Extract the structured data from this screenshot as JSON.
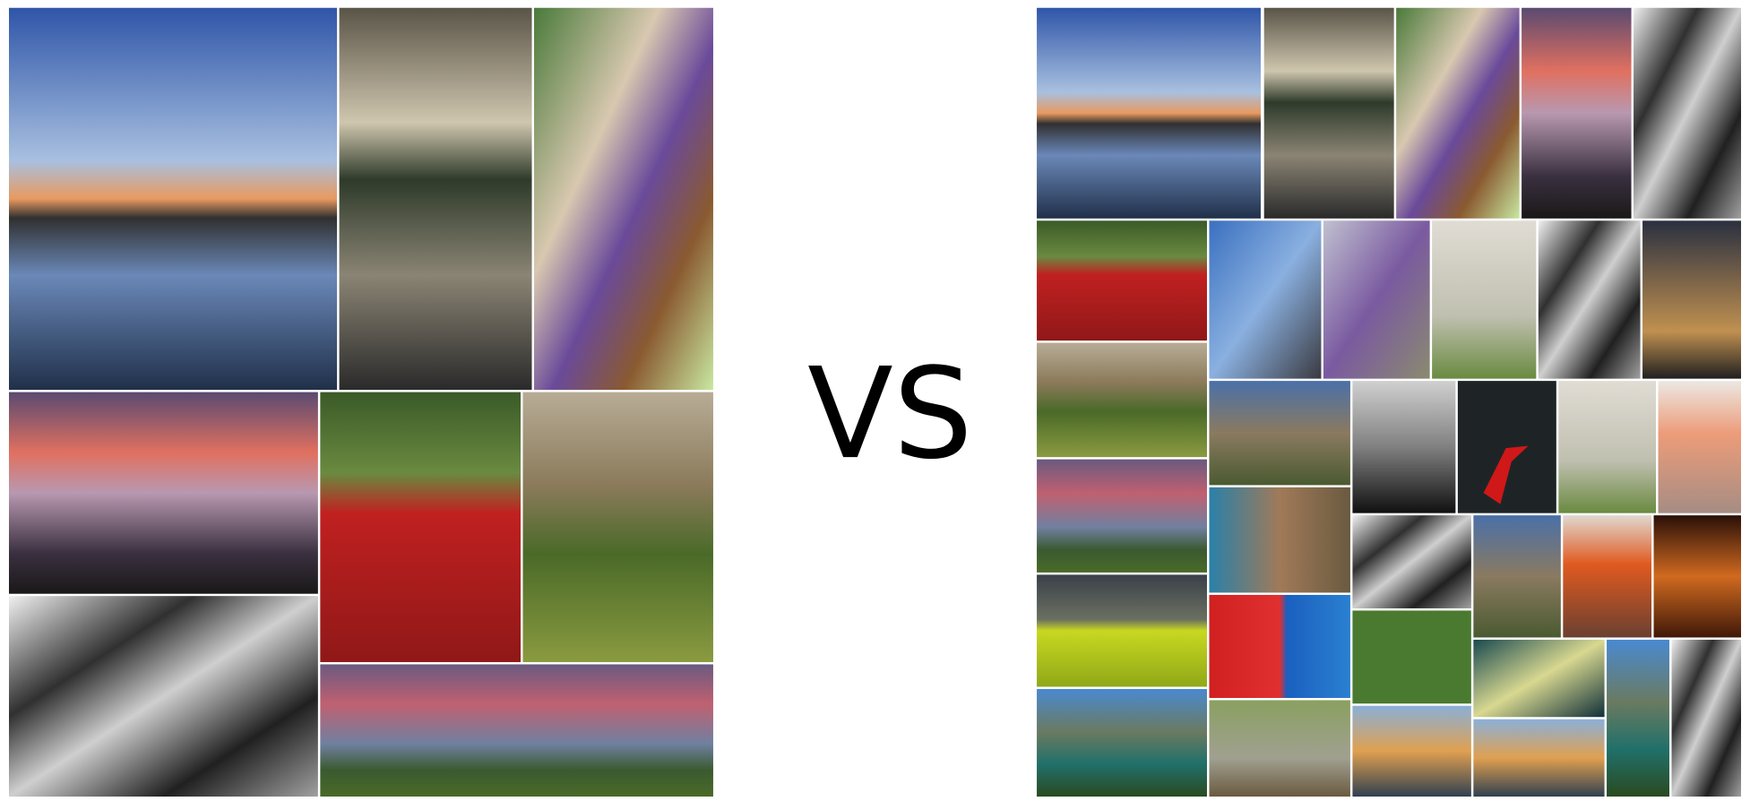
{
  "center_text": "VS"
}
